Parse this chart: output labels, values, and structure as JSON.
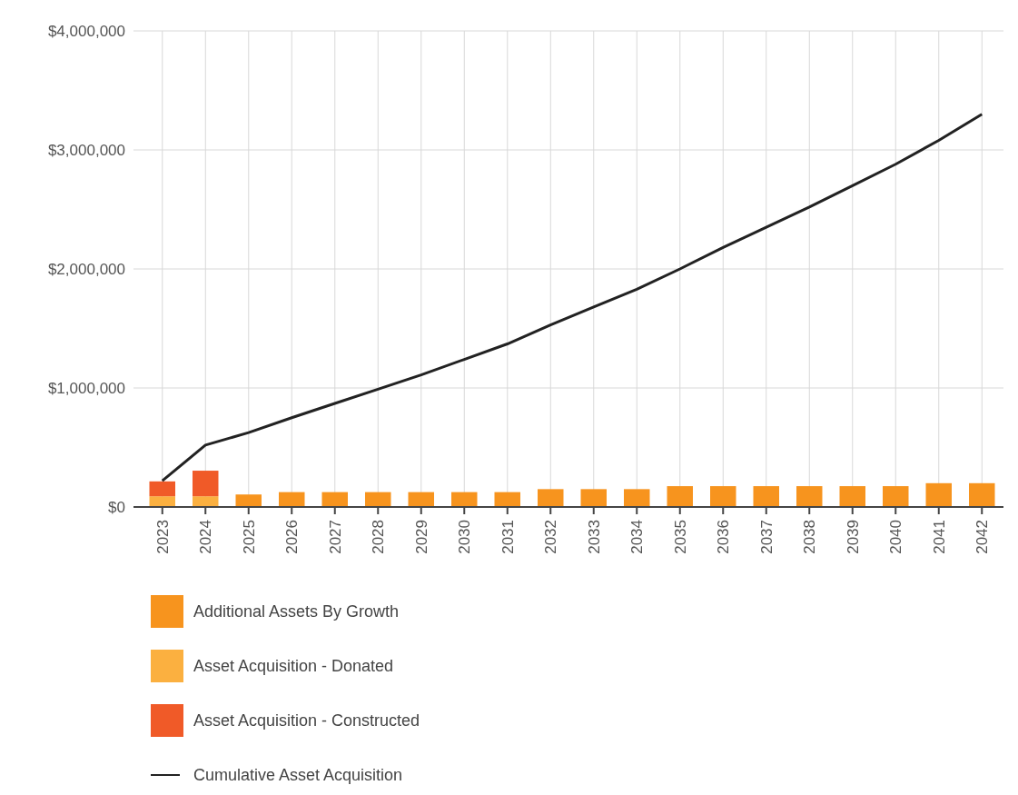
{
  "chart_data": {
    "type": "bar",
    "stacked": true,
    "categories": [
      "2023",
      "2024",
      "2025",
      "2026",
      "2027",
      "2028",
      "2029",
      "2030",
      "2031",
      "2032",
      "2033",
      "2034",
      "2035",
      "2036",
      "2037",
      "2038",
      "2039",
      "2040",
      "2041",
      "2042"
    ],
    "series": [
      {
        "name": "Additional Assets By Growth",
        "color": "#f7941e",
        "values": [
          0,
          0,
          105000,
          125000,
          125000,
          125000,
          125000,
          125000,
          125000,
          150000,
          150000,
          150000,
          175000,
          175000,
          175000,
          175000,
          175000,
          175000,
          200000,
          200000
        ]
      },
      {
        "name": "Asset Acquisition - Donated",
        "color": "#fbb040",
        "values": [
          90000,
          90000,
          0,
          0,
          0,
          0,
          0,
          0,
          0,
          0,
          0,
          0,
          0,
          0,
          0,
          0,
          0,
          0,
          0,
          0
        ]
      },
      {
        "name": "Asset Acquisition - Constructed",
        "color": "#f05a28",
        "values": [
          125000,
          215000,
          0,
          0,
          0,
          0,
          0,
          0,
          0,
          0,
          0,
          0,
          0,
          0,
          0,
          0,
          0,
          0,
          0,
          0
        ]
      },
      {
        "name": "Cumulative Asset Acquisition",
        "type": "line",
        "color": "#222222",
        "values": [
          220000,
          520000,
          625000,
          750000,
          870000,
          990000,
          1110000,
          1240000,
          1370000,
          1530000,
          1680000,
          1830000,
          2000000,
          2180000,
          2350000,
          2520000,
          2700000,
          2880000,
          3080000,
          3300000
        ]
      }
    ],
    "ylim": [
      0,
      4000000
    ],
    "yticks": [
      {
        "value": 0,
        "label": "$0"
      },
      {
        "value": 1000000,
        "label": "$1,000,000"
      },
      {
        "value": 2000000,
        "label": "$2,000,000"
      },
      {
        "value": 3000000,
        "label": "$3,000,000"
      },
      {
        "value": 4000000,
        "label": "$4,000,000"
      }
    ],
    "grid": true,
    "legend": "bottom",
    "marker": "none"
  }
}
